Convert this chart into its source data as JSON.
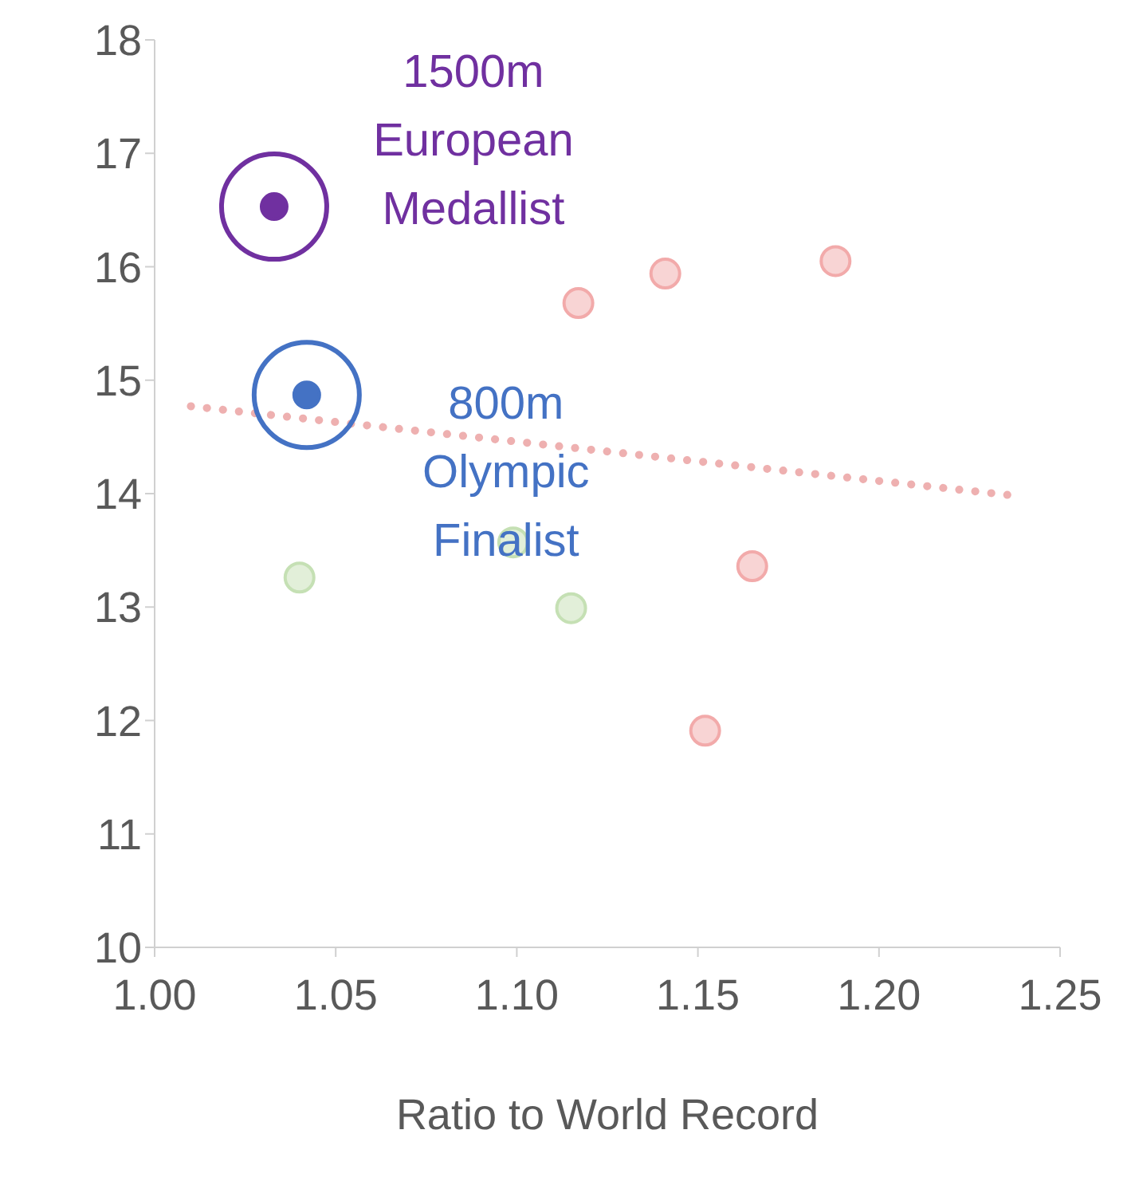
{
  "chart_data": {
    "type": "scatter",
    "xlabel": "Ratio to World Record",
    "xlim": [
      1.0,
      1.25
    ],
    "xticks": [
      {
        "value": 1.0,
        "label": "1.00"
      },
      {
        "value": 1.05,
        "label": "1.05"
      },
      {
        "value": 1.1,
        "label": "1.10"
      },
      {
        "value": 1.15,
        "label": "1.15"
      },
      {
        "value": 1.2,
        "label": "1.20"
      },
      {
        "value": 1.25,
        "label": "1.25"
      }
    ],
    "ylim": [
      10,
      18
    ],
    "yticks": [
      10,
      11,
      12,
      13,
      14,
      15,
      16,
      17,
      18
    ],
    "grid": false,
    "legend": false,
    "marker": "circle",
    "series": [
      {
        "color": "#f2aaaa",
        "x": [
          1.117,
          1.141,
          1.188,
          1.165,
          1.152
        ],
        "values": [
          15.68,
          15.94,
          16.05,
          13.36,
          11.91
        ]
      },
      {
        "color": "#c5e0b4",
        "x": [
          1.04,
          1.099,
          1.115
        ],
        "values": [
          13.26,
          13.57,
          12.99
        ]
      },
      {
        "color": "#7030a0",
        "x": [
          1.033
        ],
        "values": [
          16.53
        ]
      },
      {
        "color": "#4472c4",
        "x": [
          1.042
        ],
        "values": [
          14.87
        ]
      },
      {
        "type": "line",
        "line_style": "dotted",
        "marker": "none",
        "color": "#eeb0b0",
        "x": [
          1.01,
          1.238
        ],
        "values": [
          14.77,
          13.98
        ]
      }
    ],
    "annotations": [
      {
        "text": "1500m\nEuropean\nMedallist",
        "x": 1.033,
        "y": 16.53
      },
      {
        "text": "800m\nOlympic\nFinalist",
        "x": 1.042,
        "y": 14.87
      }
    ]
  }
}
